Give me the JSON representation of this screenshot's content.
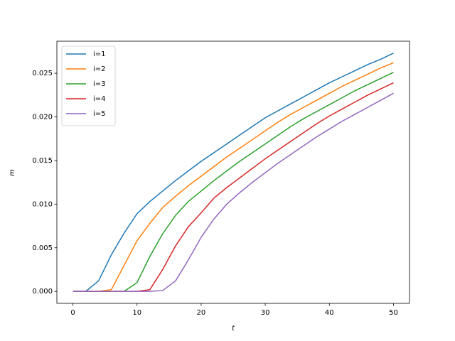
{
  "chart_data": {
    "type": "line",
    "xlabel": "t",
    "ylabel": "m",
    "x": [
      0,
      2,
      4,
      6,
      8,
      10,
      12,
      14,
      16,
      18,
      20,
      22,
      24,
      26,
      28,
      30,
      32,
      34,
      36,
      38,
      40,
      42,
      44,
      46,
      48,
      50
    ],
    "series": [
      {
        "name": "i=1",
        "color": "#1f77b4",
        "values": [
          0,
          0,
          0.0012,
          0.0042,
          0.0067,
          0.0089,
          0.0103,
          0.0115,
          0.0127,
          0.0138,
          0.0149,
          0.0159,
          0.0169,
          0.0179,
          0.0189,
          0.0199,
          0.0207,
          0.0215,
          0.0223,
          0.0231,
          0.0239,
          0.0246,
          0.0253,
          0.026,
          0.0266,
          0.0273
        ]
      },
      {
        "name": "i=2",
        "color": "#ff7f0e",
        "values": [
          0,
          0,
          0,
          0.0002,
          0.003,
          0.0058,
          0.0078,
          0.0096,
          0.0109,
          0.0121,
          0.0132,
          0.0143,
          0.0154,
          0.0164,
          0.0174,
          0.0184,
          0.0194,
          0.0203,
          0.0211,
          0.0219,
          0.0227,
          0.0235,
          0.0242,
          0.0249,
          0.0256,
          0.0262
        ]
      },
      {
        "name": "i=3",
        "color": "#2ca02c",
        "values": [
          0,
          0,
          0,
          0,
          0,
          0.001,
          0.004,
          0.0066,
          0.0087,
          0.0103,
          0.0115,
          0.0127,
          0.0138,
          0.0149,
          0.0159,
          0.0169,
          0.0179,
          0.0189,
          0.0198,
          0.0206,
          0.0214,
          0.0222,
          0.023,
          0.0237,
          0.0244,
          0.0251
        ]
      },
      {
        "name": "i=4",
        "color": "#d62728",
        "values": [
          0,
          0,
          0,
          0,
          0,
          0,
          0.0002,
          0.0025,
          0.0052,
          0.0074,
          0.009,
          0.0107,
          0.0119,
          0.013,
          0.0141,
          0.0152,
          0.0162,
          0.0172,
          0.0182,
          0.0192,
          0.0201,
          0.0209,
          0.0217,
          0.0225,
          0.0232,
          0.0239
        ]
      },
      {
        "name": "i=5",
        "color": "#9467bd",
        "values": [
          0,
          0,
          0,
          0,
          0,
          0,
          0,
          0.0001,
          0.0012,
          0.0036,
          0.0062,
          0.0083,
          0.01,
          0.0113,
          0.0125,
          0.0136,
          0.0147,
          0.0157,
          0.0167,
          0.0177,
          0.0186,
          0.0195,
          0.0203,
          0.0211,
          0.0219,
          0.0227
        ]
      }
    ],
    "xlim": [
      -2.5,
      52.5
    ],
    "xticks": [
      0,
      10,
      20,
      30,
      40,
      50
    ],
    "ylim": [
      -0.00137,
      0.02867
    ],
    "yticks": [
      {
        "value": 0,
        "label": "0.000"
      },
      {
        "value": 0.005,
        "label": "0.005"
      },
      {
        "value": 0.01,
        "label": "0.010"
      },
      {
        "value": 0.015,
        "label": "0.015"
      },
      {
        "value": 0.02,
        "label": "0.020"
      },
      {
        "value": 0.025,
        "label": "0.025"
      }
    ],
    "legend": "upper left"
  }
}
